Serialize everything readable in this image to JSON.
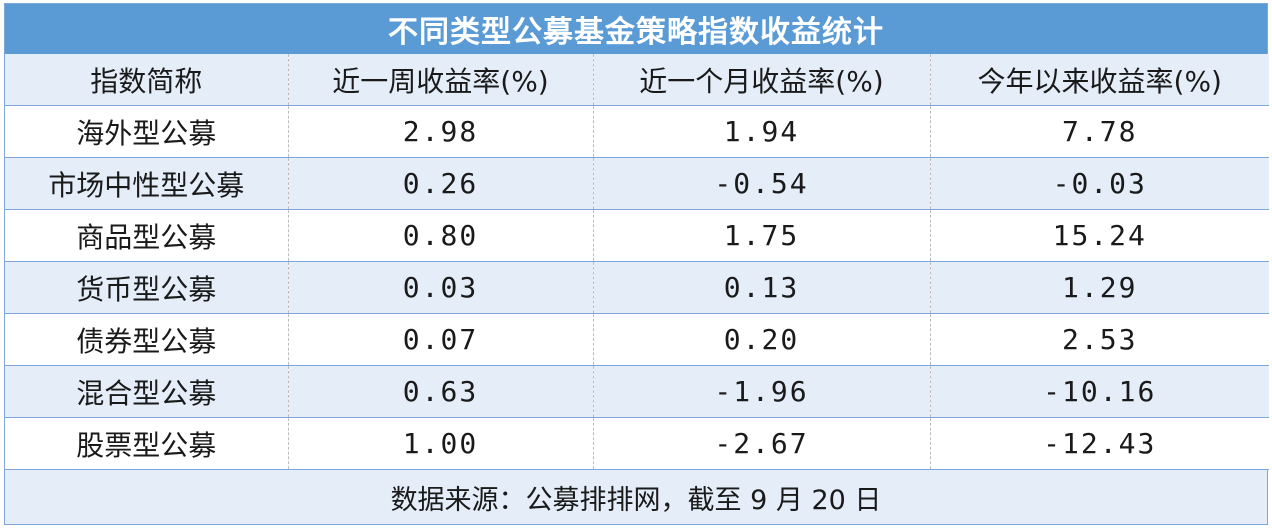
{
  "chart_data": {
    "type": "table",
    "title": "不同类型公募基金策略指数收益统计",
    "columns": [
      "指数简称",
      "近一周收益率(%)",
      "近一个月收益率(%)",
      "今年以来收益率(%)"
    ],
    "rows": [
      {
        "name": "海外型公募",
        "week": "2.98",
        "month": "1.94",
        "ytd": "7.78"
      },
      {
        "name": "市场中性型公募",
        "week": "0.26",
        "month": "-0.54",
        "ytd": "-0.03"
      },
      {
        "name": "商品型公募",
        "week": "0.80",
        "month": "1.75",
        "ytd": "15.24"
      },
      {
        "name": "货币型公募",
        "week": "0.03",
        "month": "0.13",
        "ytd": "1.29"
      },
      {
        "name": "债券型公募",
        "week": "0.07",
        "month": "0.20",
        "ytd": "2.53"
      },
      {
        "name": "混合型公募",
        "week": "0.63",
        "month": "-1.96",
        "ytd": "-10.16"
      },
      {
        "name": "股票型公募",
        "week": "1.00",
        "month": "-2.67",
        "ytd": "-12.43"
      }
    ],
    "source_note": "数据来源：公募排排网，截至 9 月 20 日"
  },
  "colors": {
    "header_bg": "#5b9bd5",
    "stripe_bg": "#e4edf8",
    "border": "#7fa7d9"
  }
}
